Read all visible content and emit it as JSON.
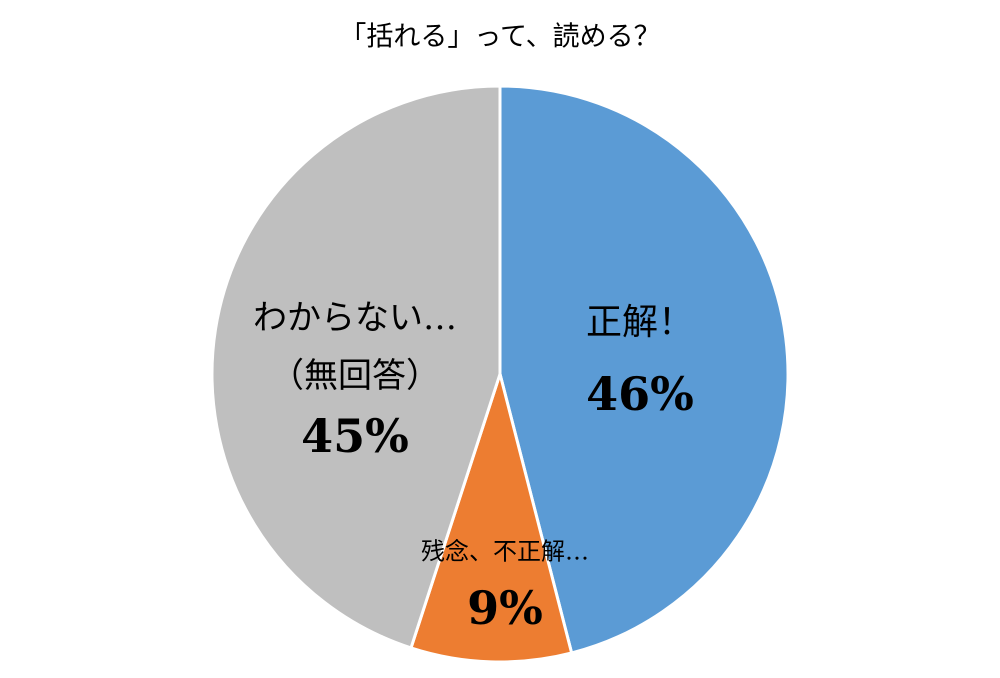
{
  "chart_data": {
    "type": "pie",
    "title": "「括れる」って、読める？",
    "categories": [
      "正解！",
      "残念、不正解…",
      "わからない…（無回答）"
    ],
    "values": [
      46,
      9,
      45
    ],
    "value_labels": [
      "46%",
      "9%",
      "45%"
    ],
    "colors": [
      "#5b9bd5",
      "#ed7d31",
      "#bfbfbf"
    ]
  }
}
